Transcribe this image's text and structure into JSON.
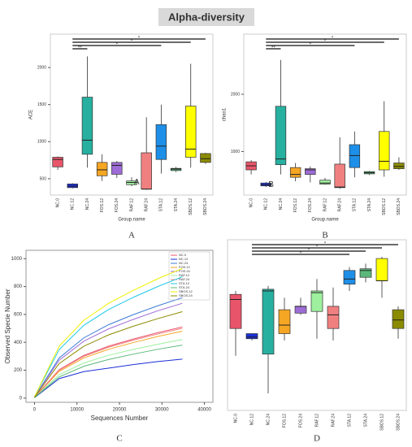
{
  "title": "Alpha-diversity",
  "chart_data": [
    {
      "type": "box",
      "label": "A",
      "ylabel": "ACE",
      "xlabel": "Group.name",
      "categories": [
        "NC.0",
        "NC.12",
        "NC.24",
        "FOS.12",
        "FOS.24",
        "RAF.12",
        "RAF.24",
        "STA.12",
        "STA.24",
        "SBOS.12",
        "SBOS.24"
      ],
      "colors": [
        "#e8556a",
        "#1a2fd6",
        "#27b0a0",
        "#f5a623",
        "#9d6cd6",
        "#9ef09e",
        "#f08080",
        "#1e8fe8",
        "#5cb87a",
        "#ffff00",
        "#8b8b00"
      ],
      "boxes": [
        {
          "min": 620,
          "q1": 660,
          "median": 760,
          "q3": 790,
          "max": 800
        },
        {
          "min": 370,
          "q1": 380,
          "median": 400,
          "q3": 430,
          "max": 440
        },
        {
          "min": 650,
          "q1": 830,
          "median": 1020,
          "q3": 1600,
          "max": 2150
        },
        {
          "min": 470,
          "q1": 540,
          "median": 620,
          "q3": 720,
          "max": 830
        },
        {
          "min": 510,
          "q1": 560,
          "median": 680,
          "q3": 720,
          "max": 740
        },
        {
          "min": 400,
          "q1": 420,
          "median": 450,
          "q3": 470,
          "max": 520
        },
        {
          "min": 350,
          "q1": 360,
          "median": 360,
          "q3": 850,
          "max": 1330
        },
        {
          "min": 570,
          "q1": 760,
          "median": 940,
          "q3": 1230,
          "max": 1500
        },
        {
          "min": 590,
          "q1": 610,
          "median": 630,
          "q3": 640,
          "max": 660
        },
        {
          "min": 650,
          "q1": 790,
          "median": 900,
          "q3": 1480,
          "max": 2050
        },
        {
          "min": 700,
          "q1": 720,
          "median": 770,
          "q3": 840,
          "max": 850
        }
      ],
      "ylim": [
        280,
        2450
      ],
      "yticks": [
        500,
        1000,
        1500,
        2000
      ],
      "significance": [
        {
          "groups": [
            "NC.12",
            "SBOS.24"
          ],
          "label": "*"
        },
        {
          "groups": [
            "NC.12",
            "SBOS.12"
          ],
          "label": "*"
        },
        {
          "groups": [
            "NC.12",
            "STA.12"
          ],
          "label": "*"
        },
        {
          "groups": [
            "NC.12",
            "NC.24"
          ],
          "label": "**"
        }
      ],
      "annotations": [
        {
          "text": "A",
          "category": "RAF.12"
        }
      ]
    },
    {
      "type": "box",
      "label": "B",
      "ylabel": "chao1",
      "xlabel": "Group.name",
      "categories": [
        "NC.0",
        "NC.12",
        "NC.24",
        "FOS.12",
        "FOS.24",
        "RAF.12",
        "RAF.24",
        "STA.12",
        "STA.24",
        "SBOS.12",
        "SBOS.24"
      ],
      "colors": [
        "#e8556a",
        "#1a2fd6",
        "#27b0a0",
        "#f5a623",
        "#9d6cd6",
        "#9ef09e",
        "#f08080",
        "#1e8fe8",
        "#5cb87a",
        "#ffff00",
        "#8b8b00"
      ],
      "boxes": [
        {
          "min": 600,
          "q1": 680,
          "median": 750,
          "q3": 820,
          "max": 850
        },
        {
          "min": 380,
          "q1": 400,
          "median": 420,
          "q3": 450,
          "max": 470
        },
        {
          "min": 600,
          "q1": 770,
          "median": 870,
          "q3": 1790,
          "max": 2600
        },
        {
          "min": 480,
          "q1": 550,
          "median": 600,
          "q3": 720,
          "max": 800
        },
        {
          "min": 460,
          "q1": 600,
          "median": 680,
          "q3": 700,
          "max": 740
        },
        {
          "min": 420,
          "q1": 430,
          "median": 450,
          "q3": 500,
          "max": 540
        },
        {
          "min": 350,
          "q1": 370,
          "median": 380,
          "q3": 780,
          "max": 1250
        },
        {
          "min": 550,
          "q1": 720,
          "median": 930,
          "q3": 1120,
          "max": 1350
        },
        {
          "min": 590,
          "q1": 610,
          "median": 630,
          "q3": 650,
          "max": 660
        },
        {
          "min": 560,
          "q1": 680,
          "median": 830,
          "q3": 1350,
          "max": 1880
        },
        {
          "min": 680,
          "q1": 700,
          "median": 740,
          "q3": 800,
          "max": 900
        }
      ],
      "ylim": [
        240,
        3050
      ],
      "yticks": [
        1000,
        2000
      ],
      "significance": [
        {
          "groups": [
            "NC.12",
            "SBOS.24"
          ],
          "label": "*"
        },
        {
          "groups": [
            "NC.12",
            "SBOS.12"
          ],
          "label": "*"
        },
        {
          "groups": [
            "NC.12",
            "STA.12"
          ],
          "label": "*"
        },
        {
          "groups": [
            "NC.12",
            "NC.24"
          ],
          "label": "**"
        }
      ],
      "annotations": [
        {
          "text": "B",
          "category": "NC.12"
        }
      ]
    },
    {
      "type": "line",
      "label": "C",
      "ylabel": "Observed Specie Number",
      "xlabel": "Sequences Number",
      "x": [
        0,
        5800,
        11600,
        17400,
        23200,
        29000,
        34800
      ],
      "xlim": [
        -2000,
        42000
      ],
      "xticks": [
        0,
        10000,
        20000,
        30000,
        40000
      ],
      "ylim": [
        -30,
        1060
      ],
      "yticks": [
        0,
        200,
        400,
        600,
        800,
        1000
      ],
      "series": [
        {
          "name": "NC.0",
          "color": "#e8556a",
          "values": [
            5,
            204,
            306,
            372,
            423,
            469,
            510
          ]
        },
        {
          "name": "NC.12",
          "color": "#1a2fd6",
          "values": [
            3,
            140,
            190,
            215,
            240,
            262,
            280
          ]
        },
        {
          "name": "NC.24",
          "color": "#3a7bd5",
          "values": [
            7,
            288,
            432,
            526,
            598,
            662,
            720
          ]
        },
        {
          "name": "FOS.12",
          "color": "#f5a623",
          "values": [
            5,
            192,
            288,
            350,
            398,
            442,
            480
          ]
        },
        {
          "name": "FOS.24",
          "color": "#9d6cd6",
          "values": [
            7,
            272,
            408,
            496,
            564,
            626,
            680
          ]
        },
        {
          "name": "RAF.12",
          "color": "#9ef09e",
          "values": [
            4,
            168,
            252,
            307,
            349,
            386,
            420
          ]
        },
        {
          "name": "RAF.24",
          "color": "#f08080",
          "values": [
            5,
            200,
            300,
            365,
            415,
            460,
            500
          ]
        },
        {
          "name": "STA.12",
          "color": "#1ec8e8",
          "values": [
            9,
            348,
            522,
            635,
            722,
            800,
            870
          ]
        },
        {
          "name": "STA.24",
          "color": "#5cb87a",
          "values": [
            4,
            152,
            228,
            277,
            315,
            350,
            380
          ]
        },
        {
          "name": "SBOS.12",
          "color": "#f0f000",
          "values": [
            9,
            372,
            558,
            679,
            772,
            856,
            930
          ]
        },
        {
          "name": "SBOS.24",
          "color": "#8b8b00",
          "values": [
            6,
            248,
            372,
            453,
            515,
            570,
            620
          ]
        }
      ]
    },
    {
      "type": "box",
      "label": "D",
      "categories": [
        "NC.0",
        "NC.12",
        "NC.24",
        "FOS.12",
        "FOS.24",
        "RAF.12",
        "RAF.24",
        "STA.12",
        "STA.24",
        "SBOS.12",
        "SBOS.24"
      ],
      "colors": [
        "#e8556a",
        "#1a2fd6",
        "#27b0a0",
        "#f5a623",
        "#9d6cd6",
        "#9ef09e",
        "#f08080",
        "#1e8fe8",
        "#5cb87a",
        "#ffff00",
        "#8b8b00"
      ],
      "boxes": [
        {
          "min": 32,
          "q1": 48,
          "median": 65,
          "q3": 68,
          "max": 70
        },
        {
          "min": 41,
          "q1": 42,
          "median": 43,
          "q3": 45,
          "max": 45
        },
        {
          "min": 10,
          "q1": 33,
          "median": 70,
          "q3": 71,
          "max": 73
        },
        {
          "min": 41,
          "q1": 45,
          "median": 50,
          "q3": 59,
          "max": 66
        },
        {
          "min": 56,
          "q1": 57,
          "median": 61,
          "q3": 61,
          "max": 66
        },
        {
          "min": 42,
          "q1": 58,
          "median": 69,
          "q3": 70,
          "max": 77
        },
        {
          "min": 41,
          "q1": 48,
          "median": 56,
          "q3": 61,
          "max": 72
        },
        {
          "min": 70,
          "q1": 74,
          "median": 77,
          "q3": 82,
          "max": 84
        },
        {
          "min": 75,
          "q1": 78,
          "median": 82,
          "q3": 83,
          "max": 86
        },
        {
          "min": 66,
          "q1": 76,
          "median": 76,
          "q3": 89,
          "max": 90
        },
        {
          "min": 42,
          "q1": 48,
          "median": 53,
          "q3": 59,
          "max": 61
        }
      ],
      "ylim": [
        0,
        100
      ],
      "significance": [
        {
          "groups": [
            "NC.12",
            "SBOS.24"
          ],
          "label": "*"
        },
        {
          "groups": [
            "NC.12",
            "SBOS.12"
          ],
          "label": "*"
        },
        {
          "groups": [
            "NC.12",
            "STA.24"
          ],
          "label": "*"
        },
        {
          "groups": [
            "NC.12",
            "STA.12"
          ],
          "label": "*"
        }
      ]
    }
  ]
}
